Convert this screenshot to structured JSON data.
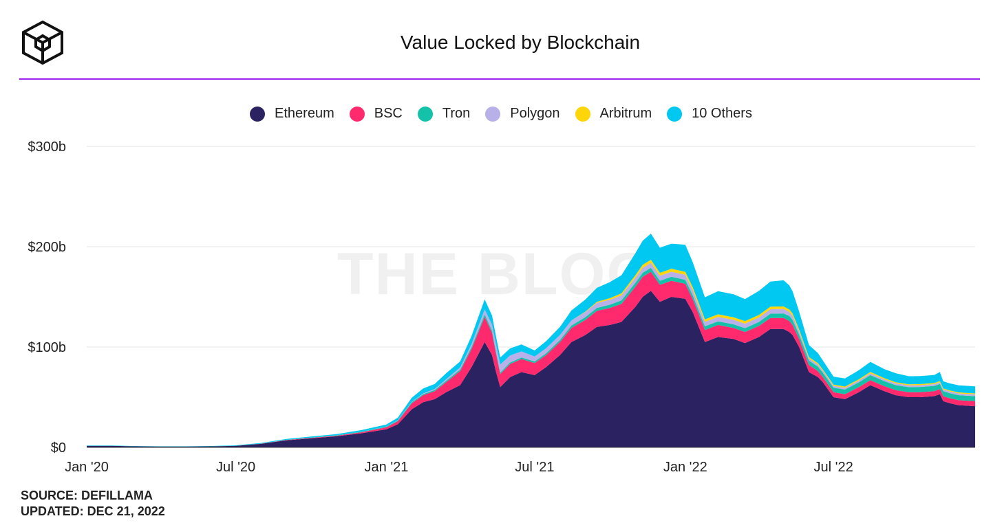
{
  "header": {
    "title": "Value Locked by Blockchain",
    "logo_icon": "the-block-cube-logo"
  },
  "watermark": "THE BLOC",
  "footer": {
    "source": "SOURCE: DEFILLAMA",
    "updated": "UPDATED: DEC 21, 2022"
  },
  "chart_data": {
    "type": "area",
    "stacked": true,
    "title": "Value Locked by Blockchain",
    "xlabel": "",
    "ylabel": "",
    "ylim": [
      0,
      300
    ],
    "yunit": "billions USD",
    "y_ticks": [
      {
        "value": 0,
        "label": "$0"
      },
      {
        "value": 100,
        "label": "$100b"
      },
      {
        "value": 200,
        "label": "$200b"
      },
      {
        "value": 300,
        "label": "$300b"
      }
    ],
    "x_ticks": [
      {
        "date": "2020-01-01",
        "label": "Jan '20"
      },
      {
        "date": "2020-07-01",
        "label": "Jul '20"
      },
      {
        "date": "2021-01-01",
        "label": "Jan '21"
      },
      {
        "date": "2021-07-01",
        "label": "Jul '21"
      },
      {
        "date": "2022-01-01",
        "label": "Jan '22"
      },
      {
        "date": "2022-07-01",
        "label": "Jul '22"
      }
    ],
    "xlim": [
      "2020-01-01",
      "2022-12-21"
    ],
    "grid": true,
    "legend_position": "top-center",
    "x": [
      "2020-01-01",
      "2020-02-01",
      "2020-03-01",
      "2020-04-01",
      "2020-05-01",
      "2020-06-01",
      "2020-07-01",
      "2020-08-01",
      "2020-09-01",
      "2020-10-01",
      "2020-11-01",
      "2020-12-01",
      "2021-01-01",
      "2021-01-15",
      "2021-02-01",
      "2021-02-15",
      "2021-03-01",
      "2021-03-15",
      "2021-04-01",
      "2021-04-15",
      "2021-05-01",
      "2021-05-10",
      "2021-05-15",
      "2021-05-20",
      "2021-06-01",
      "2021-06-15",
      "2021-07-01",
      "2021-07-15",
      "2021-08-01",
      "2021-08-15",
      "2021-09-01",
      "2021-09-15",
      "2021-10-01",
      "2021-10-15",
      "2021-11-01",
      "2021-11-10",
      "2021-11-20",
      "2021-12-01",
      "2021-12-15",
      "2022-01-01",
      "2022-01-10",
      "2022-01-25",
      "2022-02-10",
      "2022-03-01",
      "2022-03-15",
      "2022-04-01",
      "2022-04-15",
      "2022-05-01",
      "2022-05-08",
      "2022-05-12",
      "2022-05-20",
      "2022-06-01",
      "2022-06-12",
      "2022-06-18",
      "2022-07-01",
      "2022-07-15",
      "2022-08-01",
      "2022-08-15",
      "2022-09-01",
      "2022-09-15",
      "2022-10-01",
      "2022-10-15",
      "2022-11-01",
      "2022-11-08",
      "2022-11-12",
      "2022-11-20",
      "2022-12-01",
      "2022-12-21"
    ],
    "series": [
      {
        "name": "Ethereum",
        "color": "#2b2261",
        "values": [
          1.5,
          1.5,
          1.0,
          0.8,
          0.8,
          1.0,
          1.5,
          3.5,
          7,
          9,
          11,
          14,
          18,
          23,
          38,
          45,
          48,
          55,
          62,
          80,
          105,
          92,
          75,
          60,
          70,
          75,
          72,
          80,
          92,
          105,
          112,
          120,
          122,
          125,
          140,
          150,
          156,
          145,
          150,
          148,
          135,
          105,
          110,
          108,
          104,
          110,
          118,
          118,
          115,
          112,
          100,
          75,
          70,
          65,
          50,
          48,
          55,
          62,
          56,
          52,
          50,
          50,
          51,
          53,
          46,
          44,
          42,
          41
        ]
      },
      {
        "name": "BSC",
        "color": "#ff2a6d",
        "values": [
          0.02,
          0.02,
          0.02,
          0.02,
          0.02,
          0.05,
          0.1,
          0.2,
          0.4,
          0.5,
          0.6,
          1,
          2,
          3,
          6,
          7,
          8,
          10,
          14,
          18,
          25,
          22,
          18,
          13,
          13,
          13,
          12,
          12,
          13,
          14,
          15,
          16,
          17,
          18,
          20,
          20,
          19,
          17,
          16,
          15,
          13,
          12,
          12,
          11,
          11,
          11,
          11,
          11,
          11,
          10,
          8,
          7,
          6,
          5,
          5,
          5,
          5,
          5,
          5,
          5,
          5,
          5,
          5,
          5,
          5,
          5,
          5,
          5
        ]
      },
      {
        "name": "Tron",
        "color": "#13c2a8",
        "values": [
          0.01,
          0.01,
          0.01,
          0.01,
          0.01,
          0.02,
          0.05,
          0.1,
          0.2,
          0.3,
          0.4,
          0.5,
          0.6,
          0.8,
          1,
          1,
          1.2,
          1.4,
          1.6,
          2,
          2.5,
          2.3,
          2,
          1.6,
          1.6,
          1.6,
          1.6,
          1.8,
          2,
          2.5,
          2.8,
          3,
          3.2,
          3.5,
          4,
          4,
          4,
          4,
          4,
          4,
          3.8,
          3.6,
          3.6,
          3.6,
          3.8,
          4,
          4.2,
          4.5,
          5,
          5,
          4.5,
          4.5,
          4.5,
          4.4,
          4.5,
          4.6,
          4.8,
          5,
          5,
          5,
          5,
          5.2,
          5.2,
          5.2,
          5,
          5,
          5,
          5
        ]
      },
      {
        "name": "Polygon",
        "color": "#b8b0e8",
        "values": [
          0,
          0,
          0,
          0,
          0,
          0,
          0,
          0,
          0,
          0,
          0.05,
          0.1,
          0.2,
          0.3,
          0.5,
          0.8,
          1,
          1.5,
          2,
          3,
          5,
          6,
          7,
          8,
          7,
          6,
          5,
          5,
          5,
          5,
          5,
          5,
          5,
          5,
          5,
          5,
          5,
          5,
          5,
          5,
          5,
          4.5,
          4.5,
          4.5,
          4.5,
          4.5,
          4.5,
          4.5,
          4,
          4,
          3,
          2,
          2,
          2,
          1.8,
          1.8,
          1.8,
          1.8,
          1.8,
          1.8,
          1.8,
          1.8,
          1.8,
          1.8,
          1.8,
          1.8,
          1.8,
          1.8
        ]
      },
      {
        "name": "Arbitrum",
        "color": "#ffd60a",
        "values": [
          0,
          0,
          0,
          0,
          0,
          0,
          0,
          0,
          0,
          0,
          0,
          0,
          0,
          0,
          0,
          0,
          0,
          0,
          0,
          0,
          0,
          0,
          0,
          0,
          0,
          0,
          0,
          0,
          0,
          0,
          0.5,
          1,
          1.5,
          2,
          2.5,
          3,
          3,
          3,
          3,
          3,
          3,
          2.5,
          2.5,
          2.5,
          2.5,
          2.5,
          2.5,
          2.5,
          2.5,
          2.5,
          2,
          1.5,
          1.5,
          1.2,
          1.2,
          1.2,
          1.3,
          1.4,
          1.2,
          1.1,
          1.1,
          1.1,
          1.1,
          1.1,
          1,
          1,
          1,
          1
        ]
      },
      {
        "name": "10 Others",
        "color": "#00c8f0",
        "values": [
          0.3,
          0.3,
          0.3,
          0.3,
          0.3,
          0.3,
          0.4,
          0.6,
          0.8,
          1,
          1.2,
          1.5,
          2,
          2.5,
          4,
          5,
          5,
          6,
          6,
          8,
          10,
          9,
          8,
          7,
          7,
          7,
          6,
          7,
          8,
          10,
          12,
          14,
          16,
          18,
          22,
          24,
          26,
          25,
          25,
          27,
          25,
          22,
          23,
          23,
          22,
          24,
          25,
          26,
          24,
          22,
          18,
          12,
          10,
          9,
          8,
          8,
          9,
          10,
          9,
          9,
          8,
          8,
          8,
          9,
          7,
          7,
          7,
          7
        ]
      }
    ]
  }
}
